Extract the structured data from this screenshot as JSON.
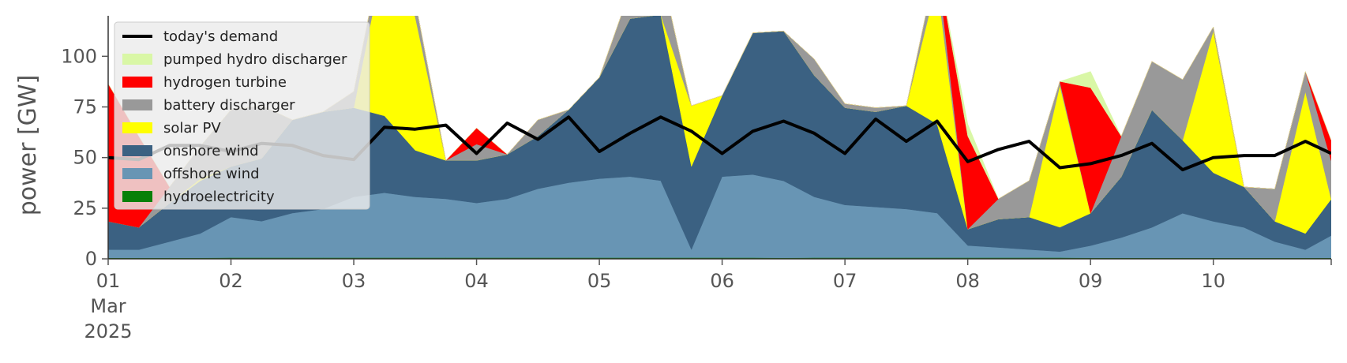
{
  "chart_data": {
    "type": "area",
    "ylabel": "power [GW]",
    "xlabel": "",
    "ylim": [
      0,
      120
    ],
    "xlim": [
      0,
      9.96
    ],
    "y_ticks": [
      0,
      25,
      50,
      75,
      100
    ],
    "y_tick_labels": [
      "0",
      "25",
      "50",
      "75",
      "100"
    ],
    "x_ticks": [
      {
        "x": 0,
        "label": "01",
        "sub": [
          "Mar",
          "2025"
        ]
      },
      {
        "x": 1,
        "label": "02"
      },
      {
        "x": 2,
        "label": "03"
      },
      {
        "x": 3,
        "label": "04"
      },
      {
        "x": 4,
        "label": "05"
      },
      {
        "x": 5,
        "label": "06"
      },
      {
        "x": 6,
        "label": "07"
      },
      {
        "x": 7,
        "label": "08"
      },
      {
        "x": 8,
        "label": "09"
      },
      {
        "x": 9,
        "label": "10"
      }
    ],
    "x_unit": "days since 2025-03-01 00:00",
    "legend_position": "top-left",
    "grid": false,
    "legend": [
      {
        "key": "demand",
        "label": "today's demand",
        "color": "#000000",
        "kind": "line"
      },
      {
        "key": "pumped",
        "label": "pumped hydro discharger",
        "color": "#d9f7a6",
        "kind": "patch"
      },
      {
        "key": "hydrogen",
        "label": "hydrogen turbine",
        "color": "#ff0000",
        "kind": "patch"
      },
      {
        "key": "battery",
        "label": "battery discharger",
        "color": "#999999",
        "kind": "patch"
      },
      {
        "key": "solar",
        "label": "solar PV",
        "color": "#ffff00",
        "kind": "patch"
      },
      {
        "key": "onshore",
        "label": "onshore wind",
        "color": "#3b6182",
        "kind": "patch"
      },
      {
        "key": "offshore",
        "label": "offshore wind",
        "color": "#6895b4",
        "kind": "patch"
      },
      {
        "key": "hydro",
        "label": "hydroelectricity",
        "color": "#088008",
        "kind": "patch"
      }
    ],
    "stack_order": [
      "hydro",
      "offshore",
      "onshore",
      "solar",
      "battery",
      "hydrogen",
      "pumped"
    ],
    "x": [
      0,
      0.25,
      0.5,
      0.75,
      1,
      1.25,
      1.5,
      1.75,
      2,
      2.25,
      2.5,
      2.75,
      3,
      3.25,
      3.5,
      3.75,
      4,
      4.25,
      4.5,
      4.75,
      5,
      5.25,
      5.5,
      5.75,
      6,
      6.25,
      6.5,
      6.75,
      7,
      7.25,
      7.5,
      7.75,
      8,
      8.25,
      8.5,
      8.75,
      9,
      9.25,
      9.5,
      9.75,
      9.96
    ],
    "series": [
      {
        "key": "hydro",
        "values": [
          0.5,
          0.5,
          0.5,
          0.5,
          0.6,
          0.6,
          0.6,
          0.6,
          0.6,
          0.6,
          0.6,
          0.6,
          0.6,
          0.6,
          0.6,
          0.6,
          0.6,
          0.6,
          0.6,
          0.6,
          0.6,
          0.6,
          0.5,
          0.6,
          0.6,
          0.6,
          0.6,
          0.6,
          0.6,
          0.6,
          0.6,
          0.6,
          0.5,
          0.5,
          0.5,
          0.5,
          0.5,
          0.5,
          0.5,
          0.5,
          0.5
        ]
      },
      {
        "key": "offshore",
        "values": [
          4,
          4,
          8,
          12,
          20,
          18,
          22,
          24,
          30,
          32,
          30,
          29,
          27,
          29,
          34,
          37,
          39,
          40,
          38,
          4,
          40,
          41,
          38,
          30,
          26,
          25,
          24,
          22,
          6,
          5,
          4,
          3,
          6,
          10,
          15,
          22,
          18,
          15,
          8,
          4,
          11
        ]
      },
      {
        "key": "onshore",
        "values": [
          14,
          11,
          19,
          26,
          25,
          31,
          46,
          48,
          44,
          38,
          23,
          19,
          21,
          22,
          26,
          36,
          50,
          78,
          82,
          41,
          40,
          70,
          74,
          60,
          48,
          47,
          51,
          44,
          8,
          14,
          16,
          12,
          16,
          30,
          58,
          36,
          24,
          20,
          10,
          8,
          18
        ]
      },
      {
        "key": "solar",
        "values": [
          0,
          0,
          0,
          1,
          0,
          0,
          0,
          0,
          0,
          80,
          66,
          0,
          0,
          0,
          0,
          0,
          0,
          0,
          0,
          30,
          0,
          0,
          0,
          0,
          0,
          0,
          0,
          70,
          0,
          0,
          0,
          70,
          0,
          0,
          0,
          0,
          70,
          0,
          0,
          70,
          0
        ]
      },
      {
        "key": "battery",
        "values": [
          0,
          0,
          8,
          16,
          28,
          26,
          0,
          0,
          8,
          8,
          8,
          0,
          8,
          0,
          8,
          0,
          0,
          14,
          22,
          0,
          0,
          0,
          0,
          8,
          2,
          2,
          0,
          10,
          0,
          10,
          18,
          2,
          0,
          20,
          24,
          30,
          2,
          0,
          16,
          10,
          19
        ]
      },
      {
        "key": "hydrogen",
        "values": [
          68,
          45,
          0,
          0,
          0,
          0,
          0,
          0,
          0,
          0,
          0,
          0,
          8,
          0,
          0,
          0,
          0,
          0,
          0,
          0,
          0,
          0,
          0,
          0,
          0,
          0,
          0,
          0,
          46,
          0,
          0,
          0,
          62,
          0,
          0,
          0,
          0,
          0,
          0,
          0,
          10
        ]
      },
      {
        "key": "pumped",
        "values": [
          0,
          0,
          0,
          0,
          0,
          0,
          0,
          0,
          0,
          0,
          0,
          0,
          0,
          0,
          0,
          0,
          0,
          0,
          0,
          0,
          0,
          0,
          0,
          0,
          0,
          0,
          0,
          0,
          6,
          0,
          0,
          0,
          8,
          0,
          0,
          0,
          0,
          0,
          0,
          0,
          0
        ]
      }
    ],
    "demand": {
      "key": "demand",
      "values": [
        50,
        49,
        56,
        56,
        53,
        57,
        56,
        51,
        49,
        65,
        64,
        66,
        52,
        67,
        59,
        70,
        53,
        62,
        70,
        63,
        52,
        63,
        68,
        62,
        52,
        69,
        58,
        68,
        48,
        54,
        58,
        45,
        47,
        51,
        57,
        44,
        50,
        51,
        51,
        58,
        52
      ]
    }
  }
}
